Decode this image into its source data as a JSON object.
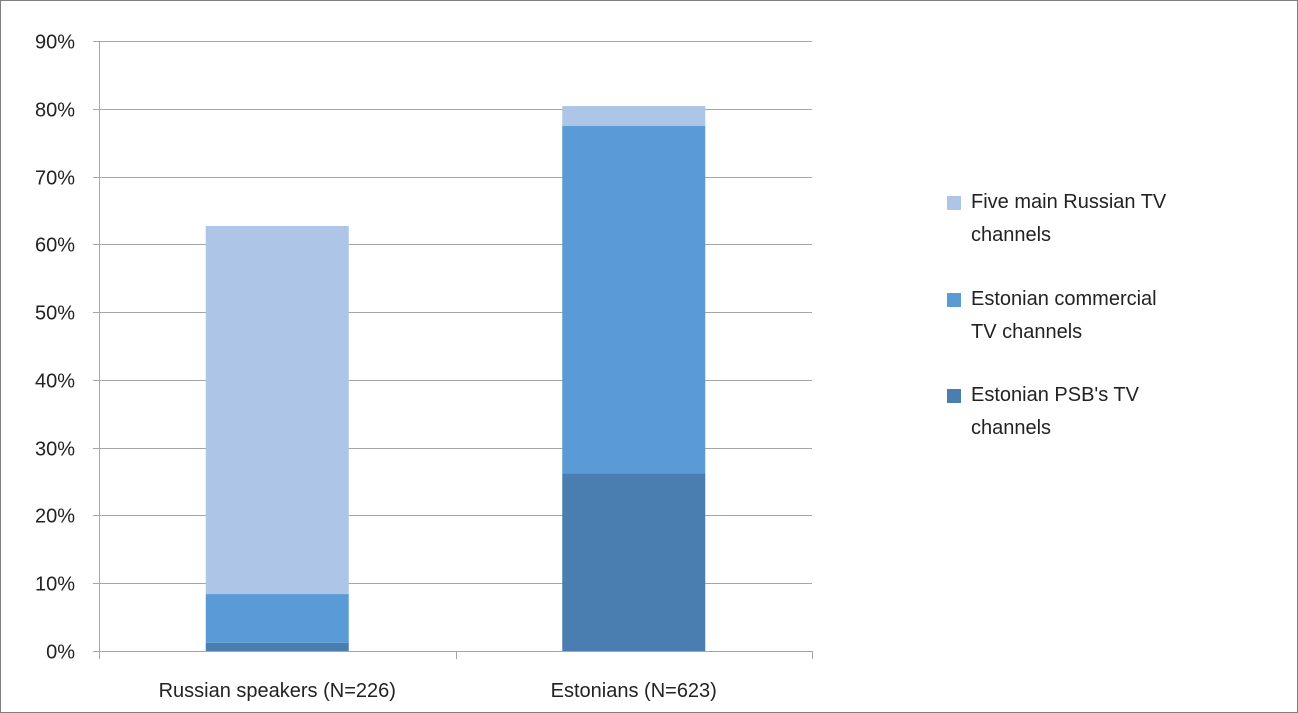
{
  "chart_data": {
    "type": "bar",
    "stacked": true,
    "categories": [
      "Russian speakers (N=226)",
      "Estonians (N=623)"
    ],
    "series": [
      {
        "name": "Estonian PSB's TV channels",
        "values": [
          1.2,
          26.2
        ],
        "color": "#4a7eb0"
      },
      {
        "name": "Estonian commercial TV channels",
        "values": [
          7.2,
          51.3
        ],
        "color": "#5b9bd5"
      },
      {
        "name": "Five main Russian TV channels",
        "values": [
          54.3,
          2.9
        ],
        "color": "#adc5e6"
      }
    ],
    "ylim": [
      0,
      90
    ],
    "ytick_step": 10,
    "ytick_labels": [
      "0%",
      "10%",
      "20%",
      "30%",
      "40%",
      "50%",
      "60%",
      "70%",
      "80%",
      "90%"
    ],
    "legend_position": "right",
    "legend": [
      {
        "series": 2,
        "lines": [
          "Five main Russian TV",
          "channels"
        ]
      },
      {
        "series": 1,
        "lines": [
          "Estonian commercial",
          "TV channels"
        ]
      },
      {
        "series": 0,
        "lines": [
          "Estonian PSB's TV",
          "channels"
        ]
      }
    ],
    "grid": true,
    "gridline_color": "#a6a6a6",
    "title": "",
    "xlabel": "",
    "ylabel": ""
  }
}
